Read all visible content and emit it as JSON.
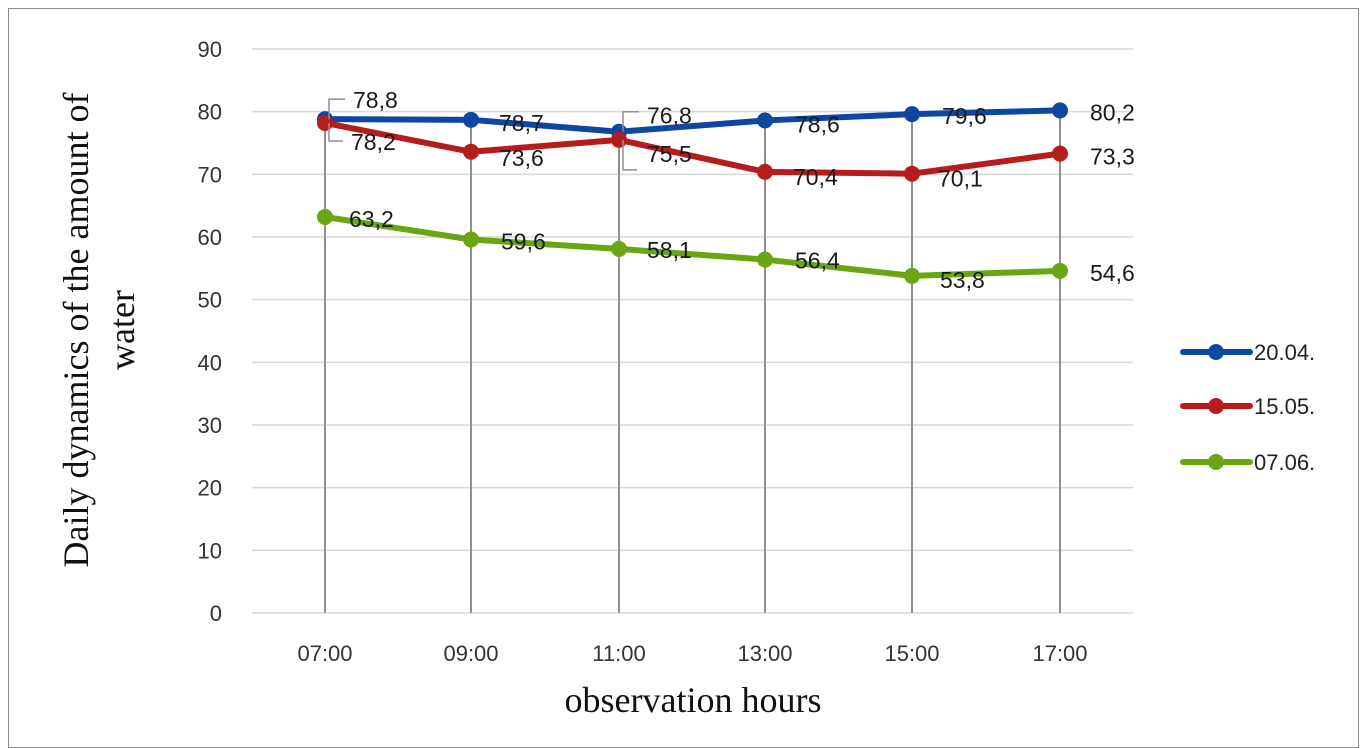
{
  "chart_data": {
    "type": "line",
    "title": "",
    "xlabel": "observation hours",
    "ylabel_lines": [
      "Daily  dynamics of the amount of",
      "water"
    ],
    "categories": [
      "07:00",
      "09:00",
      "11:00",
      "13:00",
      "15:00",
      "17:00"
    ],
    "ylim": [
      0,
      90
    ],
    "yticks": [
      0,
      10,
      20,
      30,
      40,
      50,
      60,
      70,
      80,
      90
    ],
    "grid": true,
    "legend_position": "right",
    "series": [
      {
        "name": "20.04.",
        "color": "#0d47a1",
        "values": [
          78.8,
          78.7,
          76.8,
          78.6,
          79.6,
          80.2
        ],
        "labels": [
          "78,8",
          "78,7",
          "76,8",
          "78,6",
          "79,6",
          "80,2"
        ]
      },
      {
        "name": "15.05.",
        "color": "#b71c1c",
        "values": [
          78.2,
          73.6,
          75.5,
          70.4,
          70.1,
          73.3
        ],
        "labels": [
          "78,2",
          "73,6",
          "75,5",
          "70,4",
          "70,1",
          "73,3"
        ]
      },
      {
        "name": "07.06.",
        "color": "#6aa514",
        "values": [
          63.2,
          59.6,
          58.1,
          56.4,
          53.8,
          54.6
        ],
        "labels": [
          "63,2",
          "59,6",
          "58,1",
          "56,4",
          "53,8",
          "54,6"
        ]
      }
    ]
  }
}
